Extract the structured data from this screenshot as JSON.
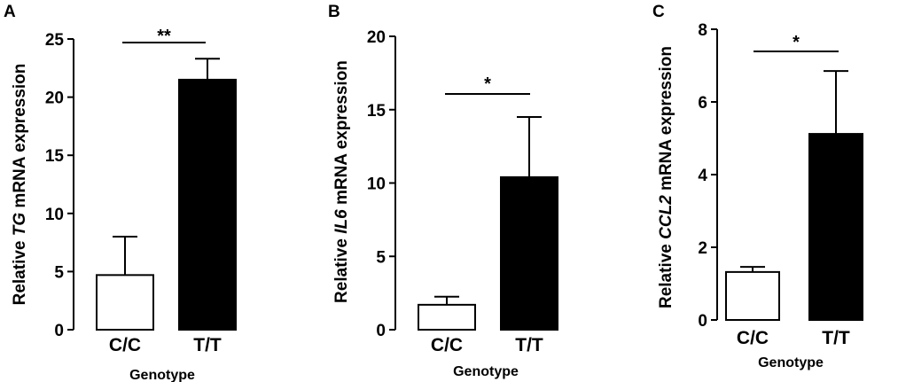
{
  "chart_data": [
    {
      "panel": "A",
      "type": "bar",
      "categories": [
        "C/C",
        "T/T"
      ],
      "values": [
        4.7,
        21.5
      ],
      "errors": [
        3.3,
        1.8
      ],
      "bar_colors": [
        "#ffffff",
        "#000000"
      ],
      "ylabel_prefix": "Relative ",
      "ylabel_gene": "TG",
      "ylabel_suffix": " mRNA expression",
      "xlabel": "Genotype",
      "ylim": [
        0,
        25
      ],
      "yticks": [
        0,
        5,
        10,
        15,
        20,
        25
      ],
      "significance": "**"
    },
    {
      "panel": "B",
      "type": "bar",
      "categories": [
        "C/C",
        "T/T"
      ],
      "values": [
        1.7,
        10.4
      ],
      "errors": [
        0.55,
        4.1
      ],
      "bar_colors": [
        "#ffffff",
        "#000000"
      ],
      "ylabel_prefix": "Relative ",
      "ylabel_gene": "IL6",
      "ylabel_suffix": " mRNA expression",
      "xlabel": "Genotype",
      "ylim": [
        0,
        20
      ],
      "yticks": [
        0,
        5,
        10,
        15,
        20
      ],
      "significance": "*"
    },
    {
      "panel": "C",
      "type": "bar",
      "categories": [
        "C/C",
        "T/T"
      ],
      "values": [
        1.32,
        5.12
      ],
      "errors": [
        0.14,
        1.73
      ],
      "bar_colors": [
        "#ffffff",
        "#000000"
      ],
      "ylabel_prefix": "Relative ",
      "ylabel_gene": "CCL2",
      "ylabel_suffix": " mRNA expression",
      "xlabel": "Genotype",
      "ylim": [
        0,
        8
      ],
      "yticks": [
        0,
        2,
        4,
        6,
        8
      ],
      "significance": "*"
    }
  ]
}
